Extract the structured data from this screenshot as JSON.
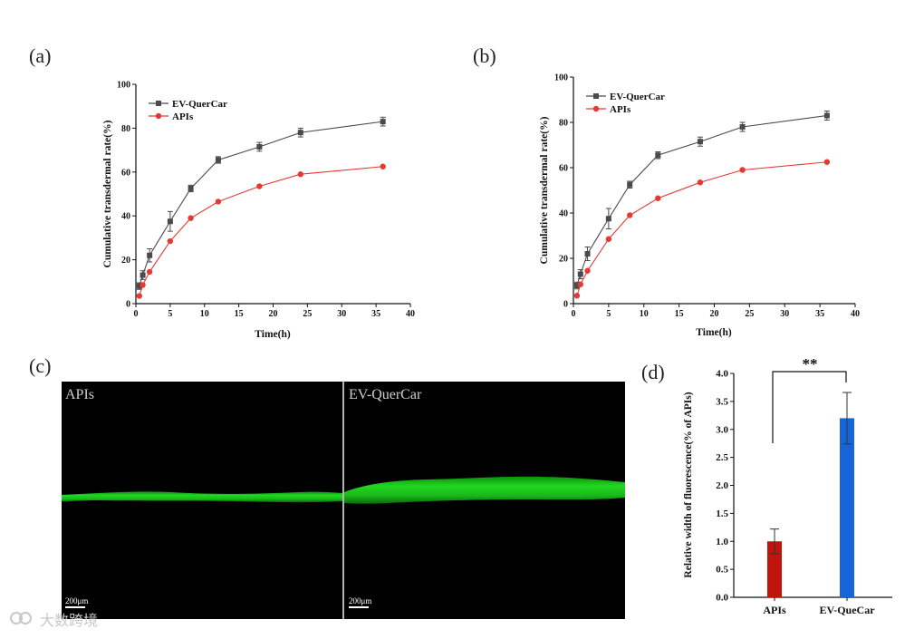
{
  "panels": {
    "a": "(a)",
    "b": "(b)",
    "c": "(c)",
    "d": "(d)"
  },
  "chart_data": [
    {
      "id": "a",
      "type": "line",
      "title": "",
      "xlabel": "Time(h)",
      "ylabel": "Cumulative transdermal rate(%)",
      "xlim": [
        0,
        40
      ],
      "ylim": [
        0,
        100
      ],
      "xticks": [
        0,
        5,
        10,
        15,
        20,
        25,
        30,
        35,
        40
      ],
      "yticks": [
        0,
        20,
        40,
        60,
        80,
        100
      ],
      "legend": "top-left",
      "series": [
        {
          "name": "EV-QuerCar",
          "color": "#4a4a4a",
          "marker": "square",
          "x": [
            0.5,
            1,
            2,
            5,
            8,
            12,
            18,
            24,
            36
          ],
          "y": [
            8,
            13,
            22,
            37.5,
            52.5,
            65.5,
            71.5,
            78,
            83
          ],
          "err": [
            1.5,
            2,
            3,
            4.5,
            1.5,
            1.5,
            2,
            2,
            2
          ]
        },
        {
          "name": "APIs",
          "color": "#e53935",
          "marker": "circle",
          "x": [
            0.5,
            1,
            2,
            5,
            8,
            12,
            18,
            24,
            36
          ],
          "y": [
            3.5,
            8.5,
            14.5,
            28.5,
            39,
            46.5,
            53.5,
            59,
            62.5
          ],
          "err": [
            0.5,
            0.5,
            0.5,
            0.5,
            0.5,
            0.5,
            0.5,
            0.5,
            0.5
          ]
        }
      ]
    },
    {
      "id": "b",
      "type": "line",
      "title": "",
      "xlabel": "Time(h)",
      "ylabel": "Cumulative transdermal rate(%)",
      "xlim": [
        0,
        40
      ],
      "ylim": [
        0,
        100
      ],
      "xticks": [
        0,
        5,
        10,
        15,
        20,
        25,
        30,
        35,
        40
      ],
      "yticks": [
        0,
        20,
        40,
        60,
        80,
        100
      ],
      "legend": "top-left",
      "series": [
        {
          "name": "EV-QuerCar",
          "color": "#4a4a4a",
          "marker": "square",
          "x": [
            0.5,
            1,
            2,
            5,
            8,
            12,
            18,
            24,
            36
          ],
          "y": [
            8,
            13,
            22,
            37.5,
            52.5,
            65.5,
            71.5,
            78,
            83
          ],
          "err": [
            1.5,
            2,
            3,
            4.5,
            1.5,
            1.5,
            2,
            2,
            2
          ]
        },
        {
          "name": "APIs",
          "color": "#e53935",
          "marker": "circle",
          "x": [
            0.5,
            1,
            2,
            5,
            8,
            12,
            18,
            24,
            36
          ],
          "y": [
            3.5,
            8.5,
            14.5,
            28.5,
            39,
            46.5,
            53.5,
            59,
            62.5
          ],
          "err": [
            0.5,
            0.5,
            0.5,
            0.5,
            0.5,
            0.5,
            0.5,
            0.5,
            0.5
          ]
        }
      ]
    },
    {
      "id": "d",
      "type": "bar",
      "categories": [
        "APIs",
        "EV-QueCar"
      ],
      "values": [
        1.0,
        3.2
      ],
      "errors": [
        0.22,
        0.46
      ],
      "colors": [
        "#c0150c",
        "#1565d8"
      ],
      "ylabel": "Relative width of fluorescence(% of APIs)",
      "xlabel": "",
      "ylim": [
        0,
        4.0
      ],
      "yticks": [
        "0.0",
        "0.5",
        "1.0",
        "1.5",
        "2.0",
        "2.5",
        "3.0",
        "3.5",
        "4.0"
      ],
      "significance": "**"
    }
  ],
  "micrograph": {
    "left_label": "APIs",
    "right_label": "EV-QuerCar",
    "scale_label": "200μm",
    "band_color": "#1fd21f"
  },
  "watermark": "大数跨境"
}
